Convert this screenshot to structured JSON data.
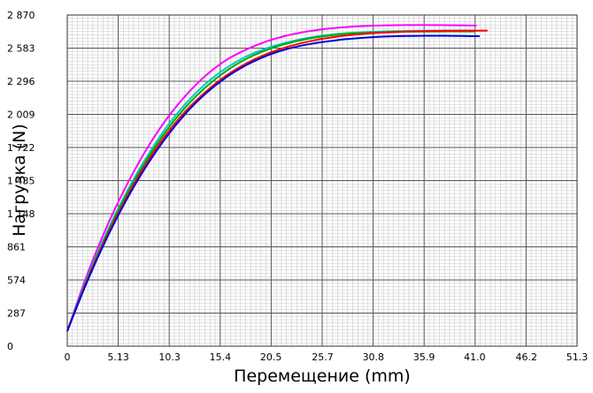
{
  "chart_data": {
    "type": "line",
    "title": "",
    "xlabel": "Перемещение (mm)",
    "ylabel": "Нагрузка (N)",
    "xlim": [
      0,
      51.3
    ],
    "ylim": [
      0,
      2870
    ],
    "x_ticks": [
      0,
      5.13,
      10.3,
      15.4,
      20.5,
      25.7,
      30.8,
      35.9,
      41.0,
      46.2,
      51.3
    ],
    "x_tick_labels": [
      "0",
      "5.13",
      "10.3",
      "15.4",
      "20.5",
      "25.7",
      "30.8",
      "35.9",
      "41.0",
      "46.2",
      "51.3"
    ],
    "y_ticks": [
      0,
      287,
      574,
      861,
      1148,
      1435,
      1722,
      2009,
      2296,
      2583,
      2870
    ],
    "y_tick_labels": [
      "0",
      "287",
      "574",
      "861",
      "1 148",
      "1 435",
      "1 722",
      "2 009",
      "2 296",
      "2 583",
      "2 870"
    ],
    "grid": true,
    "minor_grid": true,
    "legend": false,
    "series": [
      {
        "color": "#ff00ff",
        "x": [
          0,
          2,
          4,
          6,
          8,
          10,
          12,
          14,
          16,
          18,
          20,
          22,
          24,
          26,
          28,
          30,
          32,
          34,
          36,
          38,
          40,
          41.2
        ],
        "y": [
          130,
          620,
          1040,
          1400,
          1710,
          1970,
          2180,
          2350,
          2480,
          2570,
          2640,
          2690,
          2725,
          2750,
          2765,
          2775,
          2780,
          2783,
          2783,
          2782,
          2780,
          2778
        ]
      },
      {
        "color": "#00c8c8",
        "x": [
          0,
          2,
          4,
          6,
          8,
          10,
          12,
          14,
          16,
          18,
          20,
          22,
          24,
          26,
          28,
          30,
          32,
          34,
          36,
          38,
          40,
          41.0
        ],
        "y": [
          130,
          590,
          990,
          1340,
          1640,
          1900,
          2110,
          2280,
          2410,
          2510,
          2580,
          2630,
          2668,
          2695,
          2712,
          2722,
          2728,
          2732,
          2734,
          2735,
          2735,
          2735
        ]
      },
      {
        "color": "#00aa00",
        "x": [
          0,
          2,
          4,
          6,
          8,
          10,
          12,
          14,
          16,
          18,
          20,
          22,
          24,
          26,
          28,
          30,
          32,
          34,
          36,
          38,
          40,
          41.0
        ],
        "y": [
          130,
          580,
          975,
          1320,
          1615,
          1870,
          2080,
          2250,
          2385,
          2490,
          2565,
          2620,
          2660,
          2688,
          2706,
          2716,
          2722,
          2726,
          2727,
          2728,
          2728,
          2728
        ]
      },
      {
        "color": "#ff0000",
        "x": [
          0,
          2,
          4,
          6,
          8,
          10,
          12,
          14,
          16,
          18,
          20,
          22,
          24,
          26,
          28,
          30,
          32,
          34,
          36,
          38,
          40,
          42.3
        ],
        "y": [
          130,
          570,
          955,
          1295,
          1590,
          1840,
          2045,
          2210,
          2345,
          2450,
          2530,
          2590,
          2635,
          2668,
          2692,
          2708,
          2718,
          2725,
          2730,
          2733,
          2734,
          2735
        ]
      },
      {
        "color": "#0000dd",
        "x": [
          0,
          2,
          4,
          6,
          8,
          10,
          12,
          14,
          16,
          18,
          20,
          22,
          24,
          26,
          28,
          30,
          32,
          34,
          36,
          38,
          40,
          41.5
        ],
        "y": [
          130,
          560,
          940,
          1275,
          1565,
          1815,
          2025,
          2195,
          2330,
          2435,
          2515,
          2572,
          2612,
          2640,
          2660,
          2674,
          2683,
          2688,
          2690,
          2690,
          2688,
          2686
        ]
      }
    ]
  }
}
